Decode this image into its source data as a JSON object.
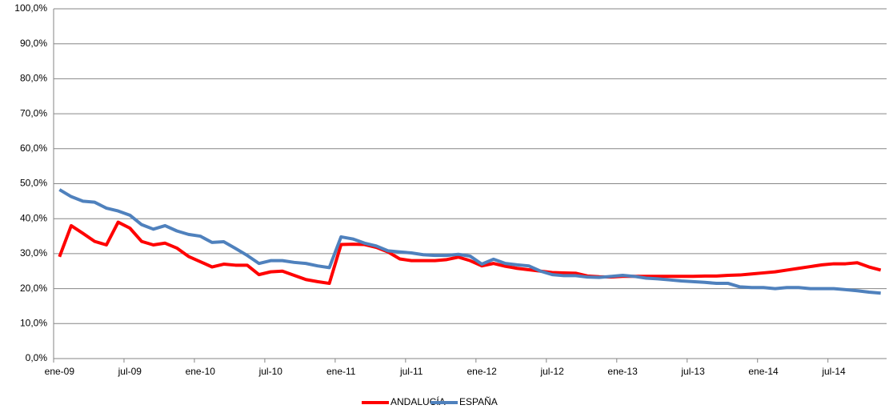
{
  "chart_data": {
    "type": "line",
    "categories": [
      "ene-09",
      null,
      null,
      null,
      null,
      null,
      "jul-09",
      null,
      null,
      null,
      null,
      null,
      "ene-10",
      null,
      null,
      null,
      null,
      null,
      "jul-10",
      null,
      null,
      null,
      null,
      null,
      "ene-11",
      null,
      null,
      null,
      null,
      null,
      "jul-11",
      null,
      null,
      null,
      null,
      null,
      "ene-12",
      null,
      null,
      null,
      null,
      null,
      "jul-12",
      null,
      null,
      null,
      null,
      null,
      "ene-13",
      null,
      null,
      null,
      null,
      null,
      "jul-13",
      null,
      null,
      null,
      null,
      null,
      "ene-14",
      null,
      null,
      null,
      null,
      null,
      "jul-14",
      null,
      null,
      null,
      null
    ],
    "series": [
      {
        "name": "ANDALUCÍA",
        "color": "#ff0000",
        "values": [
          29.1,
          38,
          35.8,
          33.5,
          32.5,
          39,
          37.3,
          33.5,
          32.5,
          33,
          31.6,
          29.2,
          27.7,
          26.2,
          27,
          26.7,
          26.7,
          24,
          24.8,
          25,
          23.8,
          22.6,
          22,
          21.5,
          32.6,
          32.7,
          32.6,
          31.8,
          30.5,
          28.5,
          28,
          28,
          28,
          28.3,
          29,
          28,
          26.5,
          27.2,
          26.4,
          25.8,
          25.4,
          25,
          24.6,
          24.5,
          24.4,
          23.6,
          23.4,
          23.3,
          23.5,
          23.5,
          23.5,
          23.5,
          23.5,
          23.5,
          23.5,
          23.6,
          23.6,
          23.8,
          23.9,
          24.2,
          24.5,
          24.8,
          25.3,
          25.8,
          26.3,
          26.8,
          27.1,
          27.1,
          27.4,
          26.2,
          25.3
        ]
      },
      {
        "name": "ESPAÑA",
        "color": "#4f81bd",
        "values": [
          48.3,
          46.3,
          45,
          44.7,
          43,
          42.2,
          41,
          38.3,
          37,
          38,
          36.5,
          35.5,
          35,
          33.2,
          33.4,
          31.5,
          29.5,
          27.2,
          28,
          28,
          27.5,
          27.2,
          26.5,
          26,
          34.8,
          34.2,
          33,
          32.2,
          30.8,
          30.5,
          30.2,
          29.7,
          29.5,
          29.5,
          29.8,
          29.3,
          27,
          28.4,
          27.2,
          26.8,
          26.5,
          25,
          24,
          23.7,
          23.7,
          23.3,
          23.2,
          23.5,
          23.8,
          23.5,
          23,
          22.8,
          22.5,
          22.2,
          22,
          21.8,
          21.5,
          21.5,
          20.5,
          20.3,
          20.3,
          20,
          20.3,
          20.3,
          20,
          20,
          20,
          19.7,
          19.4,
          19,
          18.7
        ]
      }
    ],
    "ylim": [
      0,
      100
    ],
    "yticks": [
      {
        "value": 0,
        "label": "0,0%"
      },
      {
        "value": 10,
        "label": "10,0%"
      },
      {
        "value": 20,
        "label": "20,0%"
      },
      {
        "value": 30,
        "label": "30,0%"
      },
      {
        "value": 40,
        "label": "40,0%"
      },
      {
        "value": 50,
        "label": "50,0%"
      },
      {
        "value": 60,
        "label": "60,0%"
      },
      {
        "value": 70,
        "label": "70,0%"
      },
      {
        "value": 80,
        "label": "80,0%"
      },
      {
        "value": 90,
        "label": "90,0%"
      },
      {
        "value": 100,
        "label": "100,0%"
      }
    ],
    "grid": true,
    "legend": "bottom"
  }
}
